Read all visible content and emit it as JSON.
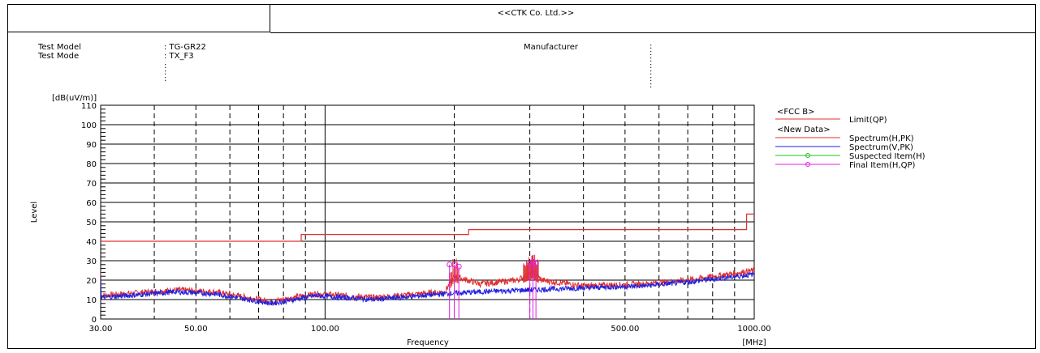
{
  "header": {
    "company": "<<CTK Co. Ltd.>>",
    "test_model_label": "Test Model",
    "test_model_value": ": TG-GR22",
    "test_mode_label": "Test Mode",
    "test_mode_value": ": TX_F3",
    "manufacturer_label": "Manufacturer",
    "manufacturer_value": ":"
  },
  "chart_data": {
    "type": "line",
    "xscale": "log",
    "xlim": [
      30,
      1000
    ],
    "ylim": [
      0,
      110
    ],
    "yunit": "[dB(uV/m)]",
    "xunit": "[MHz]",
    "xlabel": "Frequency",
    "ylabel": "Level",
    "xticks": [
      30,
      50,
      100,
      500,
      1000
    ],
    "xtick_labels": [
      "30.00",
      "50.00",
      "100.00",
      "500.00",
      "1000.00"
    ],
    "yticks": [
      0,
      10,
      20,
      30,
      40,
      50,
      60,
      70,
      80,
      90,
      100,
      110
    ],
    "yticklabels": [
      "0",
      "10",
      "20",
      "30",
      "40",
      "50",
      "60",
      "70",
      "80",
      "90",
      "100",
      "110"
    ],
    "grid": true,
    "legend_position": "right",
    "legend": {
      "group1": "<FCC B>",
      "group2": "<New Data>",
      "entries": [
        {
          "name": "Limit(QP)",
          "color": "#e03030",
          "marker": false
        },
        {
          "name": "Spectrum(H,PK)",
          "color": "#e03030",
          "marker": false
        },
        {
          "name": "Spectrum(V,PK)",
          "color": "#2020e0",
          "marker": false
        },
        {
          "name": "Suspected Item(H)",
          "color": "#20c020",
          "marker": true
        },
        {
          "name": "Final Item(H,QP)",
          "color": "#e020e0",
          "marker": true
        }
      ]
    },
    "limit_qp": [
      [
        30,
        40
      ],
      [
        88,
        40
      ],
      [
        88,
        43.5
      ],
      [
        216,
        43.5
      ],
      [
        216,
        46
      ],
      [
        960,
        46
      ],
      [
        960,
        54
      ],
      [
        1000,
        54
      ]
    ],
    "spectrum_h_pk": [
      [
        30,
        12
      ],
      [
        45,
        15
      ],
      [
        55,
        14
      ],
      [
        75,
        9
      ],
      [
        95,
        13
      ],
      [
        130,
        11
      ],
      [
        190,
        14
      ],
      [
        200,
        22
      ],
      [
        230,
        18
      ],
      [
        280,
        20
      ],
      [
        305,
        24
      ],
      [
        320,
        20
      ],
      [
        400,
        17
      ],
      [
        550,
        18
      ],
      [
        700,
        20
      ],
      [
        1000,
        25
      ]
    ],
    "spectrum_v_pk": [
      [
        30,
        11
      ],
      [
        45,
        14
      ],
      [
        55,
        13
      ],
      [
        75,
        8
      ],
      [
        95,
        12
      ],
      [
        130,
        10
      ],
      [
        190,
        13
      ],
      [
        230,
        14
      ],
      [
        300,
        15
      ],
      [
        400,
        16
      ],
      [
        550,
        17
      ],
      [
        700,
        19
      ],
      [
        1000,
        23
      ]
    ],
    "final_items_h_qp": [
      [
        195,
        28
      ],
      [
        200,
        28
      ],
      [
        205,
        27
      ],
      [
        300,
        28.5
      ],
      [
        305,
        29.5
      ],
      [
        310,
        28.5
      ]
    ]
  }
}
